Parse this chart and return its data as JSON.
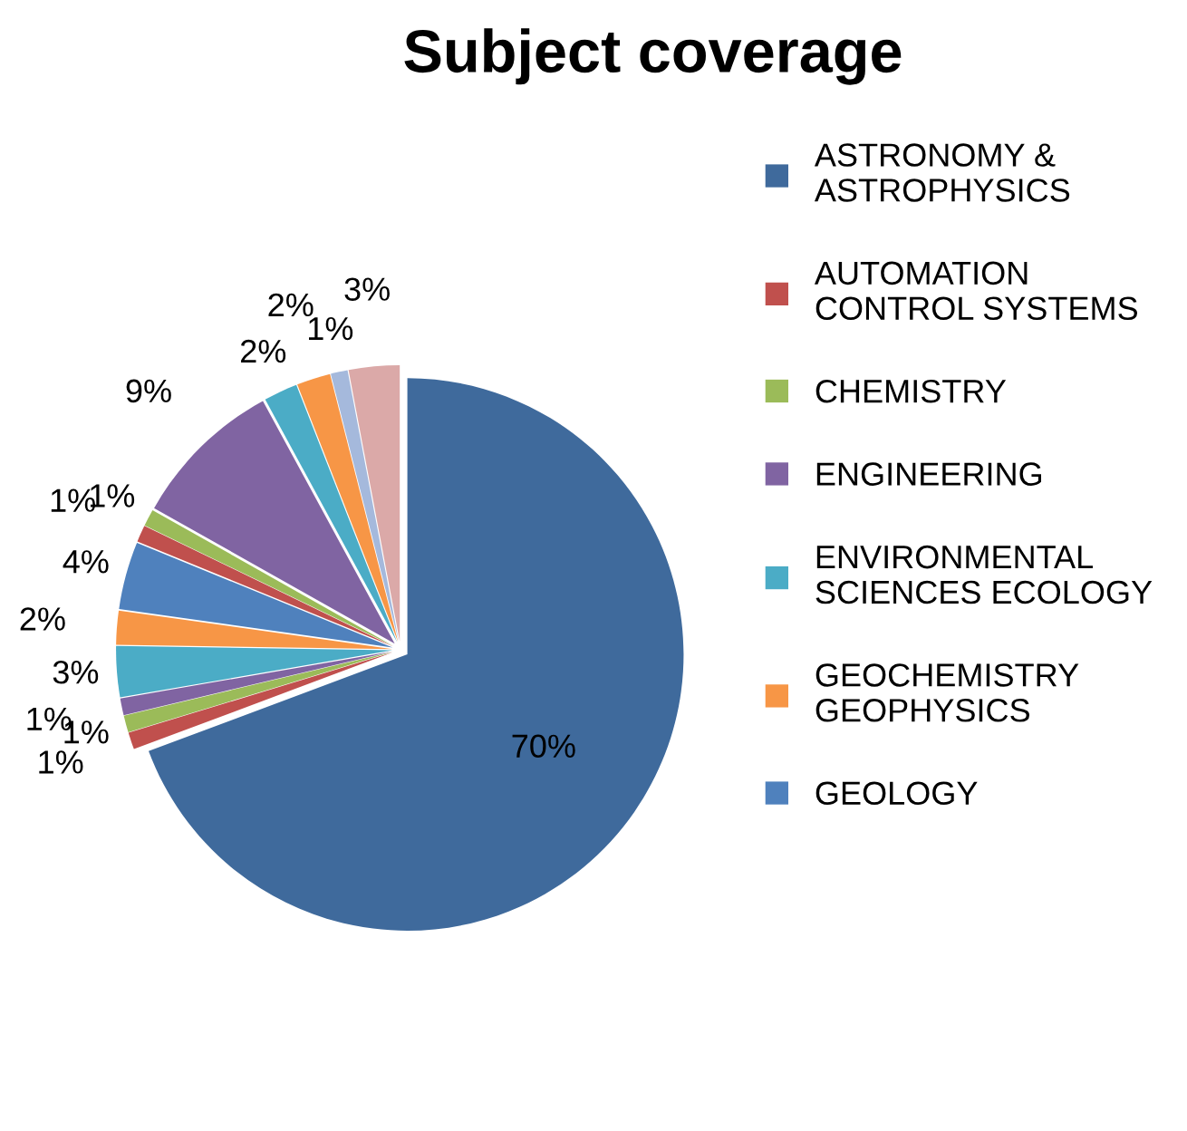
{
  "chart_data": {
    "type": "pie",
    "title": "Subject coverage",
    "categories": [
      "ASTRONOMY & ASTROPHYSICS",
      "AUTOMATION CONTROL SYSTEMS",
      "CHEMISTRY",
      "ENGINEERING",
      "ENVIRONMENTAL SCIENCES ECOLOGY",
      "GEOCHEMISTRY GEOPHYSICS",
      "GEOLOGY",
      null,
      null,
      null,
      null,
      null,
      null,
      null
    ],
    "values": [
      70,
      1,
      1,
      1,
      3,
      2,
      4,
      1,
      1,
      9,
      2,
      2,
      1,
      3
    ],
    "value_labels": [
      "70%",
      "1%",
      "1%",
      "1%",
      "3%",
      "2%",
      "4%",
      "1%",
      "1%",
      "9%",
      "2%",
      "2%",
      "1%",
      "3%"
    ],
    "colors": [
      "#3f6a9c",
      "#c0504d",
      "#9bbb59",
      "#8064a2",
      "#4bacc6",
      "#f79646",
      "#4f81bd",
      "#c0504d",
      "#9bbb59",
      "#8064a2",
      "#4bacc6",
      "#f79646",
      "#a5b9dc",
      "#dba9a8"
    ],
    "legend": "right"
  }
}
